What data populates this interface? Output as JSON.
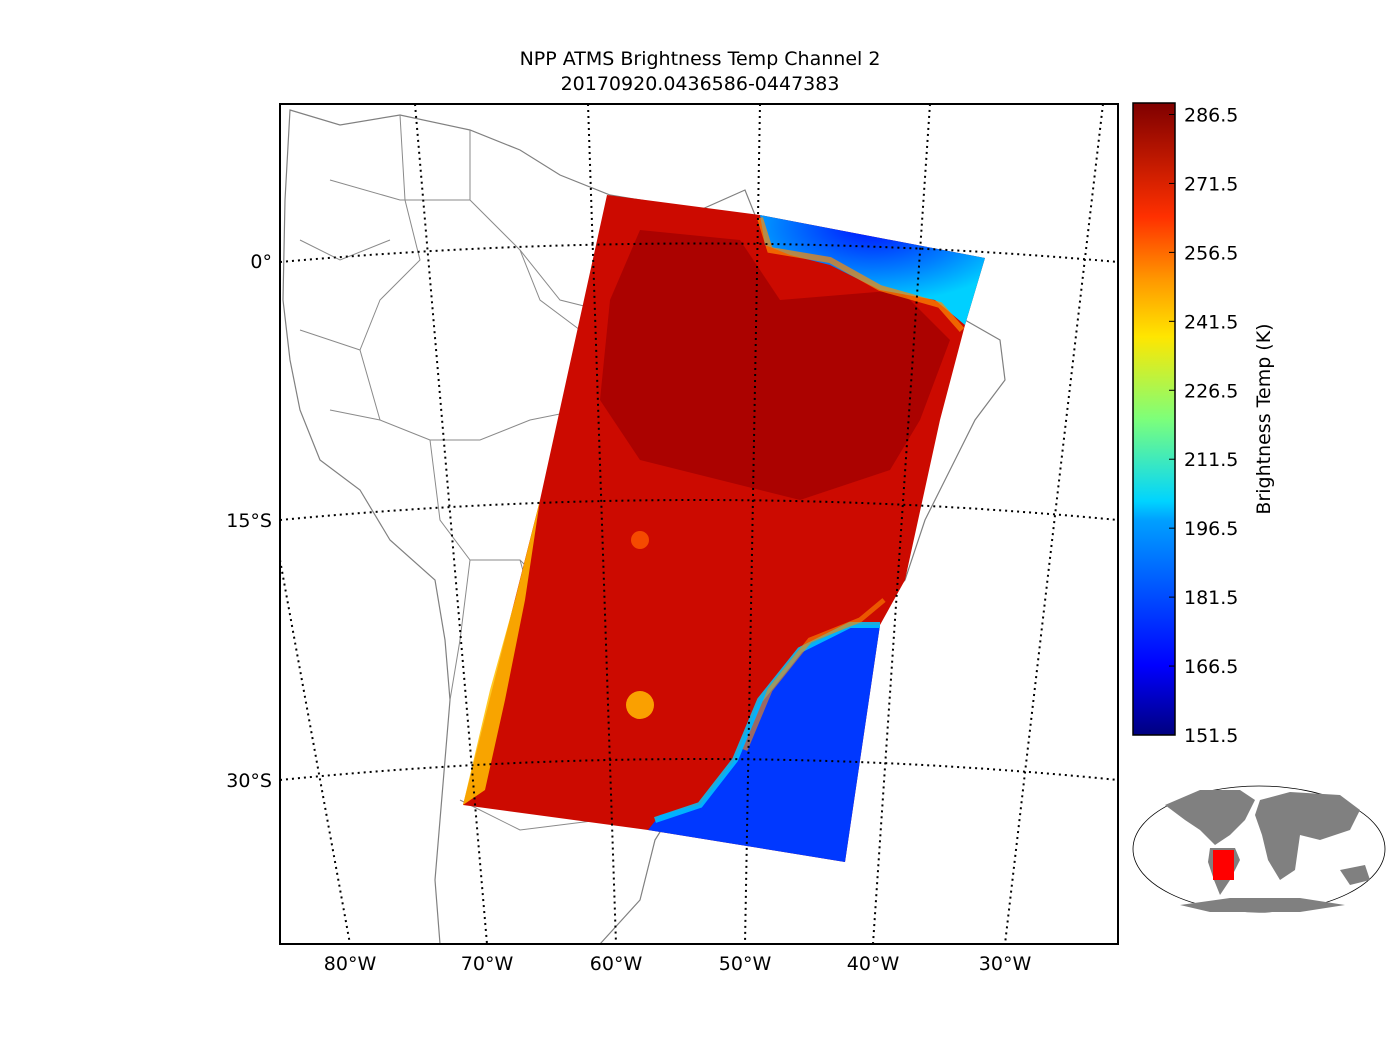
{
  "title_line1": "NPP ATMS Brightness Temp Channel 2",
  "title_line2": "20170920.0436586-0447383",
  "map": {
    "lat_labels": [
      "0°",
      "15°S",
      "30°S"
    ],
    "lon_labels": [
      "80°W",
      "70°W",
      "60°W",
      "50°W",
      "40°W",
      "30°W"
    ],
    "land_color": "#ffffff",
    "border_color": "#808080",
    "grid_style": "dotted"
  },
  "colorbar": {
    "label": "Brightness Temp (K)",
    "ticks": [
      "286.5",
      "271.5",
      "256.5",
      "241.5",
      "226.5",
      "211.5",
      "196.5",
      "181.5",
      "166.5",
      "151.5"
    ],
    "min": 151.5,
    "max": 289.0,
    "colormap": "jet"
  },
  "inset": {
    "land_color": "#808080",
    "highlight_color": "#ff0000"
  }
}
